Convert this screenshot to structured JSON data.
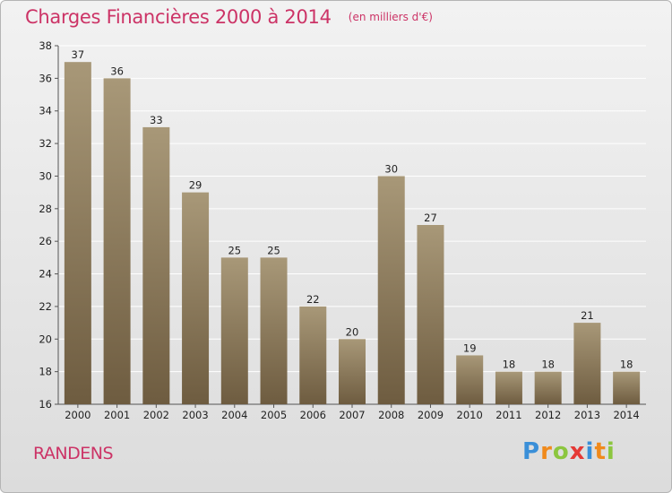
{
  "title": "Charges Financières 2000 à 2014",
  "subtitle": "(en milliers d'€)",
  "commune": "RANDENS",
  "logo": {
    "text": "Proxiti",
    "letters": [
      {
        "ch": "P",
        "color": "#3a8fd8"
      },
      {
        "ch": "r",
        "color": "#f08a1c"
      },
      {
        "ch": "o",
        "color": "#8cc63f"
      },
      {
        "ch": "x",
        "color": "#e53935"
      },
      {
        "ch": "i",
        "color": "#3a8fd8"
      },
      {
        "ch": "t",
        "color": "#f08a1c"
      },
      {
        "ch": "i",
        "color": "#8cc63f"
      }
    ]
  },
  "colors": {
    "accent": "#cc3366",
    "bar_top": "#a89878",
    "bar_bottom": "#6e5c40"
  },
  "chart_data": {
    "type": "bar",
    "title": "Charges Financières 2000 à 2014",
    "subtitle": "(en milliers d'€)",
    "categories": [
      "2000",
      "2001",
      "2002",
      "2003",
      "2004",
      "2005",
      "2006",
      "2007",
      "2008",
      "2009",
      "2010",
      "2011",
      "2012",
      "2013",
      "2014"
    ],
    "values": [
      37,
      36,
      33,
      29,
      25,
      25,
      22,
      20,
      30,
      27,
      19,
      18,
      18,
      21,
      18
    ],
    "ylim": [
      16,
      38
    ],
    "yticks": [
      16,
      18,
      20,
      22,
      24,
      26,
      28,
      30,
      32,
      34,
      36,
      38
    ],
    "grid": true,
    "data_labels": true
  }
}
